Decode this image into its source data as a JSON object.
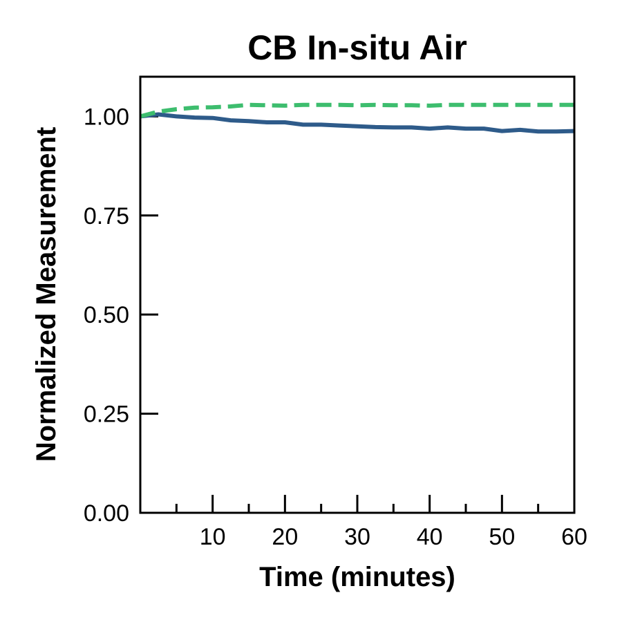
{
  "chart_data": {
    "type": "line",
    "title": "CB In-situ Air",
    "xlabel": "Time (minutes)",
    "ylabel": "Normalized Measurement",
    "xlim": [
      0,
      60
    ],
    "ylim": [
      0,
      1.1
    ],
    "x_ticks": [
      {
        "value": 10,
        "label": "10"
      },
      {
        "value": 20,
        "label": "20"
      },
      {
        "value": 30,
        "label": "30"
      },
      {
        "value": 40,
        "label": "40"
      },
      {
        "value": 50,
        "label": "50"
      },
      {
        "value": 60,
        "label": "60"
      }
    ],
    "x_minor_ticks": [
      5,
      15,
      25,
      35,
      45,
      55
    ],
    "y_ticks": [
      {
        "value": 0,
        "label": "0.00"
      },
      {
        "value": 0.25,
        "label": "0.25"
      },
      {
        "value": 0.5,
        "label": "0.50"
      },
      {
        "value": 0.75,
        "label": "0.75"
      },
      {
        "value": 1.0,
        "label": "1.00"
      }
    ],
    "grid": false,
    "legend": "none",
    "series": [
      {
        "name": "solid-series",
        "color": "#2e5b8a",
        "style": "solid",
        "x": [
          0,
          2.5,
          5,
          7.5,
          10,
          12.5,
          15,
          17.5,
          20,
          22.5,
          25,
          27.5,
          30,
          32.5,
          35,
          37.5,
          40,
          42.5,
          45,
          47.5,
          50,
          52.5,
          55,
          57.5,
          60
        ],
        "values": [
          1.0,
          1.005,
          1.0,
          0.997,
          0.996,
          0.99,
          0.988,
          0.985,
          0.985,
          0.979,
          0.979,
          0.977,
          0.975,
          0.973,
          0.972,
          0.972,
          0.969,
          0.972,
          0.969,
          0.969,
          0.963,
          0.966,
          0.962,
          0.962,
          0.963
        ]
      },
      {
        "name": "dashed-series",
        "color": "#3dbd6e",
        "style": "dashed",
        "x": [
          0,
          2.5,
          5,
          7.5,
          10,
          12.5,
          15,
          17.5,
          20,
          22.5,
          25,
          27.5,
          30,
          32.5,
          35,
          37.5,
          40,
          42.5,
          45,
          47.5,
          50,
          52.5,
          55,
          57.5,
          60
        ],
        "values": [
          1.0,
          1.012,
          1.018,
          1.022,
          1.023,
          1.025,
          1.029,
          1.028,
          1.027,
          1.029,
          1.029,
          1.029,
          1.028,
          1.029,
          1.028,
          1.028,
          1.027,
          1.029,
          1.029,
          1.029,
          1.029,
          1.029,
          1.029,
          1.029,
          1.029
        ]
      }
    ]
  }
}
